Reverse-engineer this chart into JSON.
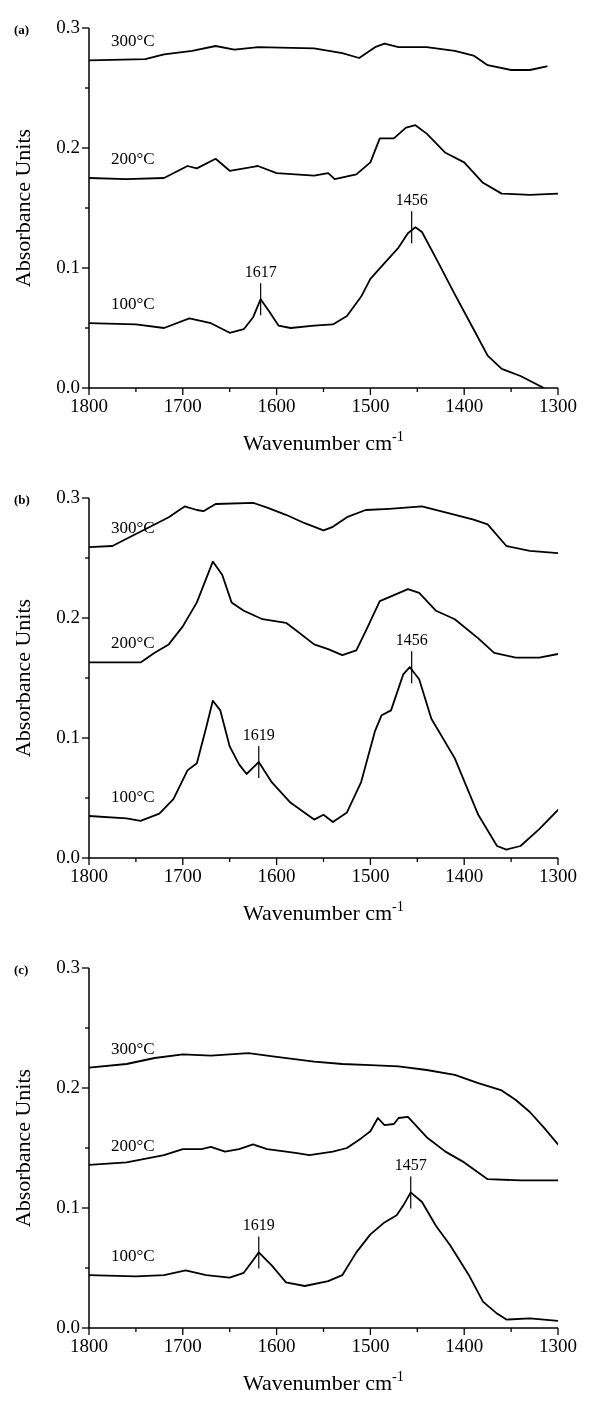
{
  "chart_data": [
    {
      "type": "line",
      "title": "(a)",
      "xlabel": "Wavenumber cm$^{-1}$",
      "ylabel": "Absorbance Units",
      "xlim": [
        1800,
        1300
      ],
      "ylim": [
        0,
        0.3
      ],
      "xticks": [
        1800,
        {
          "value": 1750,
          "label": null
        },
        1700,
        {
          "value": 1650,
          "label": null
        },
        1600,
        {
          "value": 1550,
          "label": null
        },
        1500,
        {
          "value": 1450,
          "label": null
        },
        1400,
        {
          "value": 1350,
          "label": null
        },
        1300
      ],
      "yticks": [
        {
          "value": 0,
          "label": "0.0"
        },
        {
          "value": 0.05,
          "label": null
        },
        0.1,
        {
          "value": 0.15,
          "label": null
        },
        0.2,
        {
          "value": 0.25,
          "label": null
        },
        0.3
      ],
      "grid": false,
      "legend": false,
      "marker": "none",
      "line_style": "solid",
      "annotations": [
        {
          "text": "1617",
          "x": 1617,
          "y": 0.074
        },
        {
          "text": "1456",
          "x": 1456,
          "y": 0.134
        }
      ],
      "series": [
        {
          "name": "100°C",
          "color": "#000000",
          "x": [
            1800,
            1750,
            1720,
            1693,
            1670,
            1650,
            1635,
            1625,
            1617,
            1608,
            1598,
            1585,
            1560,
            1540,
            1525,
            1510,
            1500,
            1485,
            1470,
            1460,
            1452,
            1445,
            1430,
            1410,
            1390,
            1375,
            1360,
            1340,
            1315
          ],
          "values": [
            0.054,
            0.053,
            0.05,
            0.058,
            0.054,
            0.046,
            0.049,
            0.059,
            0.074,
            0.064,
            0.052,
            0.05,
            0.052,
            0.053,
            0.06,
            0.076,
            0.091,
            0.104,
            0.117,
            0.129,
            0.134,
            0.13,
            0.108,
            0.078,
            0.049,
            0.027,
            0.016,
            0.01,
            0.0
          ]
        },
        {
          "name": "200°C",
          "color": "#000000",
          "x": [
            1800,
            1760,
            1720,
            1695,
            1685,
            1665,
            1650,
            1620,
            1600,
            1560,
            1545,
            1538,
            1515,
            1500,
            1490,
            1475,
            1462,
            1452,
            1440,
            1420,
            1400,
            1380,
            1360,
            1330,
            1300
          ],
          "values": [
            0.175,
            0.174,
            0.175,
            0.185,
            0.183,
            0.191,
            0.181,
            0.185,
            0.179,
            0.177,
            0.179,
            0.174,
            0.178,
            0.188,
            0.208,
            0.208,
            0.217,
            0.219,
            0.212,
            0.196,
            0.188,
            0.171,
            0.162,
            0.161,
            0.162
          ]
        },
        {
          "name": "300°C",
          "color": "#000000",
          "x": [
            1800,
            1740,
            1720,
            1690,
            1665,
            1645,
            1620,
            1560,
            1530,
            1512,
            1495,
            1485,
            1470,
            1440,
            1410,
            1390,
            1375,
            1350,
            1330,
            1312
          ],
          "values": [
            0.273,
            0.274,
            0.278,
            0.281,
            0.285,
            0.282,
            0.284,
            0.283,
            0.279,
            0.275,
            0.284,
            0.287,
            0.284,
            0.284,
            0.281,
            0.277,
            0.269,
            0.265,
            0.265,
            0.268
          ]
        }
      ]
    },
    {
      "type": "line",
      "title": "(b)",
      "xlabel": "Wavenumber cm$^{-1}$",
      "ylabel": "Absorbance Units",
      "xlim": [
        1800,
        1300
      ],
      "ylim": [
        0,
        0.3
      ],
      "xticks": [
        1800,
        {
          "value": 1750,
          "label": null
        },
        1700,
        {
          "value": 1650,
          "label": null
        },
        1600,
        {
          "value": 1550,
          "label": null
        },
        1500,
        {
          "value": 1450,
          "label": null
        },
        1400,
        {
          "value": 1350,
          "label": null
        },
        1300
      ],
      "yticks": [
        {
          "value": 0,
          "label": "0.0"
        },
        {
          "value": 0.05,
          "label": null
        },
        0.1,
        {
          "value": 0.15,
          "label": null
        },
        0.2,
        {
          "value": 0.25,
          "label": null
        },
        0.3
      ],
      "grid": false,
      "legend": false,
      "marker": "none",
      "line_style": "solid",
      "annotations": [
        {
          "text": "1619",
          "x": 1619,
          "y": 0.08
        },
        {
          "text": "1456",
          "x": 1456,
          "y": 0.159
        }
      ],
      "series": [
        {
          "name": "100°C",
          "color": "#000000",
          "x": [
            1800,
            1760,
            1745,
            1725,
            1710,
            1695,
            1685,
            1675,
            1668,
            1660,
            1650,
            1640,
            1632,
            1619,
            1605,
            1585,
            1560,
            1550,
            1540,
            1525,
            1510,
            1495,
            1488,
            1478,
            1465,
            1458,
            1448,
            1435,
            1410,
            1385,
            1365,
            1355,
            1340,
            1320,
            1300
          ],
          "values": [
            0.035,
            0.033,
            0.031,
            0.037,
            0.049,
            0.073,
            0.079,
            0.109,
            0.131,
            0.123,
            0.093,
            0.078,
            0.07,
            0.08,
            0.063,
            0.046,
            0.032,
            0.036,
            0.03,
            0.038,
            0.063,
            0.106,
            0.119,
            0.123,
            0.153,
            0.159,
            0.149,
            0.116,
            0.083,
            0.036,
            0.01,
            0.007,
            0.01,
            0.024,
            0.04
          ]
        },
        {
          "name": "200°C",
          "color": "#000000",
          "x": [
            1800,
            1760,
            1745,
            1730,
            1715,
            1700,
            1685,
            1668,
            1658,
            1648,
            1635,
            1615,
            1590,
            1578,
            1560,
            1545,
            1530,
            1515,
            1505,
            1490,
            1478,
            1460,
            1448,
            1430,
            1410,
            1385,
            1368,
            1345,
            1320,
            1300
          ],
          "values": [
            0.163,
            0.163,
            0.163,
            0.171,
            0.178,
            0.193,
            0.213,
            0.247,
            0.236,
            0.213,
            0.206,
            0.199,
            0.196,
            0.189,
            0.178,
            0.174,
            0.169,
            0.173,
            0.189,
            0.214,
            0.218,
            0.224,
            0.221,
            0.206,
            0.199,
            0.183,
            0.171,
            0.167,
            0.167,
            0.17
          ]
        },
        {
          "name": "300°C",
          "color": "#000000",
          "x": [
            1800,
            1775,
            1760,
            1740,
            1715,
            1698,
            1685,
            1678,
            1665,
            1625,
            1610,
            1590,
            1570,
            1550,
            1540,
            1525,
            1505,
            1480,
            1445,
            1420,
            1390,
            1375,
            1355,
            1330,
            1300
          ],
          "values": [
            0.259,
            0.26,
            0.266,
            0.274,
            0.284,
            0.293,
            0.29,
            0.289,
            0.295,
            0.296,
            0.292,
            0.286,
            0.279,
            0.273,
            0.276,
            0.284,
            0.29,
            0.291,
            0.293,
            0.288,
            0.282,
            0.278,
            0.26,
            0.256,
            0.254
          ]
        }
      ]
    },
    {
      "type": "line",
      "title": "(c)",
      "xlabel": "Wavenumber cm$^{-1}$",
      "ylabel": "Absorbance Units",
      "xlim": [
        1800,
        1300
      ],
      "ylim": [
        0,
        0.3
      ],
      "xticks": [
        1800,
        {
          "value": 1750,
          "label": null
        },
        1700,
        {
          "value": 1650,
          "label": null
        },
        1600,
        {
          "value": 1550,
          "label": null
        },
        1500,
        {
          "value": 1450,
          "label": null
        },
        1400,
        {
          "value": 1350,
          "label": null
        },
        1300
      ],
      "yticks": [
        {
          "value": 0,
          "label": "0.0"
        },
        {
          "value": 0.05,
          "label": null
        },
        0.1,
        {
          "value": 0.15,
          "label": null
        },
        0.2,
        {
          "value": 0.25,
          "label": null
        },
        0.3
      ],
      "grid": false,
      "legend": false,
      "marker": "none",
      "line_style": "solid",
      "annotations": [
        {
          "text": "1619",
          "x": 1619,
          "y": 0.063
        },
        {
          "text": "1457",
          "x": 1457,
          "y": 0.113
        }
      ],
      "series": [
        {
          "name": "100°C",
          "color": "#000000",
          "x": [
            1800,
            1750,
            1720,
            1697,
            1675,
            1650,
            1635,
            1619,
            1605,
            1590,
            1570,
            1545,
            1530,
            1515,
            1500,
            1485,
            1472,
            1465,
            1457,
            1445,
            1430,
            1415,
            1395,
            1380,
            1365,
            1355,
            1330,
            1300
          ],
          "values": [
            0.044,
            0.043,
            0.044,
            0.048,
            0.044,
            0.042,
            0.046,
            0.063,
            0.052,
            0.038,
            0.035,
            0.039,
            0.044,
            0.063,
            0.078,
            0.088,
            0.094,
            0.102,
            0.113,
            0.105,
            0.085,
            0.069,
            0.044,
            0.022,
            0.012,
            0.007,
            0.008,
            0.006
          ]
        },
        {
          "name": "200°C",
          "color": "#000000",
          "x": [
            1800,
            1760,
            1720,
            1700,
            1680,
            1670,
            1655,
            1640,
            1625,
            1610,
            1580,
            1565,
            1540,
            1525,
            1510,
            1500,
            1492,
            1485,
            1475,
            1470,
            1460,
            1440,
            1420,
            1400,
            1375,
            1340,
            1300
          ],
          "values": [
            0.136,
            0.138,
            0.144,
            0.149,
            0.149,
            0.151,
            0.147,
            0.149,
            0.153,
            0.149,
            0.146,
            0.144,
            0.147,
            0.15,
            0.158,
            0.164,
            0.175,
            0.169,
            0.17,
            0.175,
            0.176,
            0.159,
            0.147,
            0.138,
            0.124,
            0.123,
            0.123
          ]
        },
        {
          "name": "300°C",
          "color": "#000000",
          "x": [
            1800,
            1760,
            1730,
            1700,
            1670,
            1630,
            1600,
            1560,
            1530,
            1500,
            1470,
            1440,
            1410,
            1385,
            1360,
            1345,
            1330,
            1315,
            1300
          ],
          "values": [
            0.217,
            0.22,
            0.225,
            0.228,
            0.227,
            0.229,
            0.226,
            0.222,
            0.22,
            0.219,
            0.218,
            0.215,
            0.211,
            0.204,
            0.198,
            0.19,
            0.18,
            0.167,
            0.153
          ]
        }
      ]
    }
  ]
}
